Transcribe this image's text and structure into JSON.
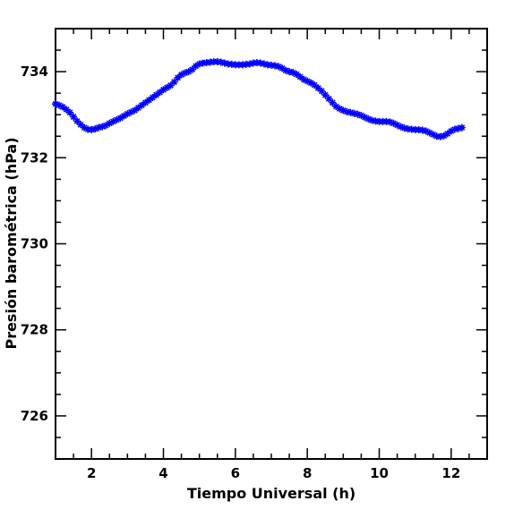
{
  "chart_data": {
    "type": "scatter",
    "title": "",
    "xlabel": "Tiempo Universal (h)",
    "ylabel": "Presión barométrica (hPa)",
    "xlim": [
      1,
      13
    ],
    "ylim": [
      725,
      735
    ],
    "xticks": [
      2,
      4,
      6,
      8,
      10,
      12
    ],
    "xtick_labels": [
      "2",
      "4",
      "6",
      "8",
      "10",
      "12"
    ],
    "yticks": [
      726,
      728,
      730,
      732,
      734
    ],
    "ytick_labels": [
      "726",
      "728",
      "730",
      "732",
      "734"
    ],
    "grid": false,
    "marker": "star",
    "series": [
      {
        "color": "#0000ff",
        "x": [
          1.0,
          1.1,
          1.2,
          1.3,
          1.4,
          1.5,
          1.6,
          1.7,
          1.8,
          1.9,
          2.0,
          2.1,
          2.2,
          2.3,
          2.4,
          2.5,
          2.6,
          2.7,
          2.8,
          2.9,
          3.0,
          3.1,
          3.2,
          3.3,
          3.4,
          3.5,
          3.6,
          3.7,
          3.8,
          3.9,
          4.0,
          4.1,
          4.2,
          4.3,
          4.4,
          4.5,
          4.6,
          4.7,
          4.8,
          4.9,
          5.0,
          5.1,
          5.2,
          5.3,
          5.4,
          5.5,
          5.6,
          5.7,
          5.8,
          5.9,
          6.0,
          6.1,
          6.2,
          6.3,
          6.4,
          6.5,
          6.6,
          6.7,
          6.8,
          6.9,
          7.0,
          7.1,
          7.2,
          7.3,
          7.4,
          7.5,
          7.6,
          7.7,
          7.8,
          7.9,
          8.0,
          8.1,
          8.2,
          8.3,
          8.4,
          8.5,
          8.6,
          8.7,
          8.8,
          8.9,
          9.0,
          9.1,
          9.2,
          9.3,
          9.4,
          9.5,
          9.6,
          9.7,
          9.8,
          9.9,
          10.0,
          10.1,
          10.2,
          10.3,
          10.4,
          10.5,
          10.6,
          10.7,
          10.8,
          10.9,
          11.0,
          11.1,
          11.2,
          11.3,
          11.4,
          11.5,
          11.6,
          11.7,
          11.8,
          11.9,
          12.0,
          12.1,
          12.2,
          12.3
        ],
        "y": [
          733.25,
          733.22,
          733.18,
          733.12,
          733.05,
          732.95,
          732.85,
          732.77,
          732.7,
          732.66,
          732.65,
          732.67,
          732.7,
          732.72,
          732.75,
          732.8,
          732.84,
          732.88,
          732.92,
          732.97,
          733.02,
          733.06,
          733.1,
          733.16,
          733.22,
          733.28,
          733.34,
          733.4,
          733.46,
          733.52,
          733.58,
          733.63,
          733.68,
          733.76,
          733.86,
          733.93,
          733.97,
          734.0,
          734.05,
          734.13,
          734.18,
          734.2,
          734.21,
          734.22,
          734.23,
          734.23,
          734.22,
          734.2,
          734.18,
          734.17,
          734.16,
          734.16,
          734.16,
          734.17,
          734.18,
          734.2,
          734.21,
          734.2,
          734.18,
          734.16,
          734.15,
          734.14,
          734.12,
          734.08,
          734.03,
          734.0,
          733.98,
          733.94,
          733.88,
          733.82,
          733.78,
          733.74,
          733.69,
          733.62,
          733.55,
          733.46,
          733.37,
          733.28,
          733.19,
          733.14,
          733.1,
          733.07,
          733.05,
          733.03,
          733.01,
          732.98,
          732.94,
          732.9,
          732.87,
          732.85,
          732.84,
          732.84,
          732.84,
          732.83,
          732.8,
          732.76,
          732.72,
          732.69,
          732.67,
          732.66,
          732.65,
          732.65,
          732.64,
          732.62,
          732.58,
          732.54,
          732.5,
          732.49,
          732.51,
          732.56,
          732.62,
          732.66,
          732.68,
          732.7
        ]
      }
    ]
  }
}
